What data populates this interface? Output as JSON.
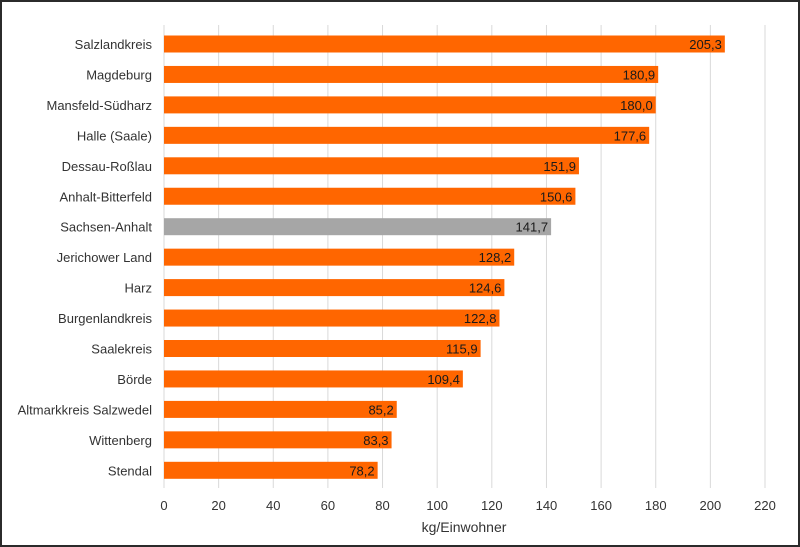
{
  "chart_data": {
    "type": "bar",
    "orientation": "horizontal",
    "categories": [
      "Salzlandkreis",
      "Magdeburg",
      "Mansfeld-Südharz",
      "Halle (Saale)",
      "Dessau-Roßlau",
      "Anhalt-Bitterfeld",
      "Sachsen-Anhalt",
      "Jerichower Land",
      "Harz",
      "Burgenlandkreis",
      "Saalekreis",
      "Börde",
      "Altmarkkreis Salzwedel",
      "Wittenberg",
      "Stendal"
    ],
    "values": [
      205.3,
      180.9,
      180.0,
      177.6,
      151.9,
      150.6,
      141.7,
      128.2,
      124.6,
      122.8,
      115.9,
      109.4,
      85.2,
      83.3,
      78.2
    ],
    "value_labels": [
      "205,3",
      "180,9",
      "180,0",
      "177,6",
      "151,9",
      "150,6",
      "141,7",
      "128,2",
      "124,6",
      "122,8",
      "115,9",
      "109,4",
      "85,2",
      "83,3",
      "78,2"
    ],
    "bar_colors": [
      "#ff6600",
      "#ff6600",
      "#ff6600",
      "#ff6600",
      "#ff6600",
      "#ff6600",
      "#a6a6a6",
      "#ff6600",
      "#ff6600",
      "#ff6600",
      "#ff6600",
      "#ff6600",
      "#ff6600",
      "#ff6600",
      "#ff6600"
    ],
    "title": "",
    "xlabel": "kg/Einwohner",
    "ylabel": "",
    "xlim": [
      0,
      220
    ],
    "xticks": [
      0,
      20,
      40,
      60,
      80,
      100,
      120,
      140,
      160,
      180,
      200,
      220
    ],
    "grid": "vertical",
    "legend": "none"
  }
}
